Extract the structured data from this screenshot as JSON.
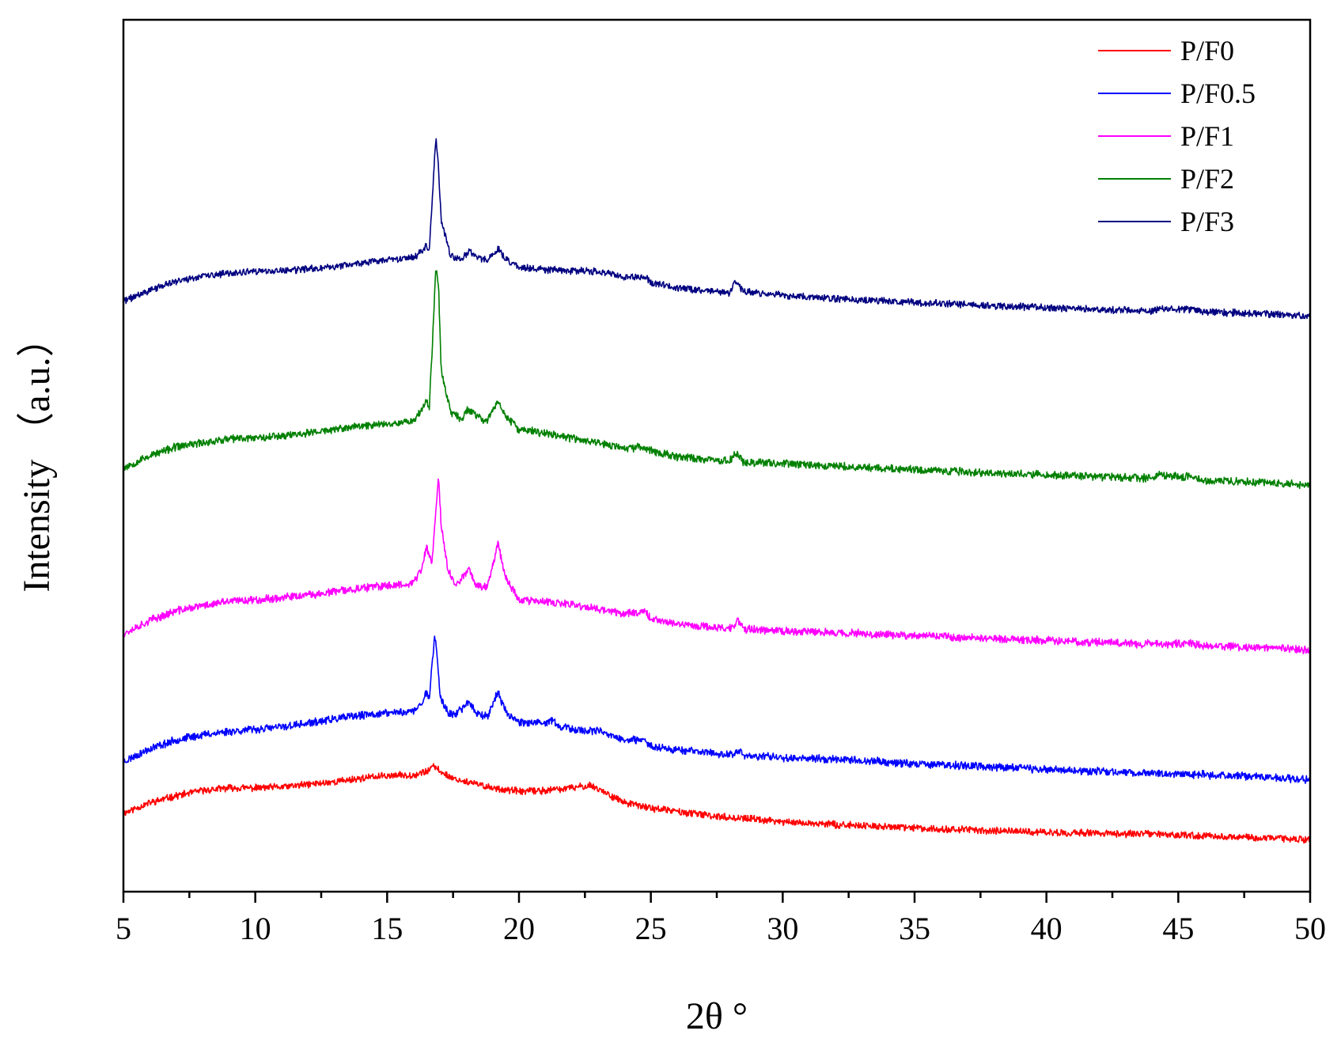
{
  "chart_data": {
    "type": "line",
    "title": "",
    "xlabel": "2θ °",
    "ylabel": "Intensity （a.u.）",
    "xlim": [
      5,
      50
    ],
    "ylim": [
      0,
      100
    ],
    "xticks": [
      5,
      10,
      15,
      20,
      25,
      30,
      35,
      40,
      45,
      50
    ],
    "xtick_labels": [
      "5",
      "10",
      "15",
      "20",
      "25",
      "30",
      "35",
      "40",
      "45",
      "50"
    ],
    "y_tick_labels_shown": false,
    "grid": false,
    "legend": {
      "position": "top-right"
    },
    "units_note": "Intensity in arbitrary units; curves vertically offset",
    "series": [
      {
        "name": "P/F0",
        "color": "#ff0000",
        "points": [
          [
            5,
            9.0
          ],
          [
            6,
            10.2
          ],
          [
            7,
            11.0
          ],
          [
            8,
            11.6
          ],
          [
            9,
            11.9
          ],
          [
            10,
            11.9
          ],
          [
            11,
            12.0
          ],
          [
            12,
            12.3
          ],
          [
            13,
            12.6
          ],
          [
            14,
            13.0
          ],
          [
            15,
            13.3
          ],
          [
            16,
            13.4
          ],
          [
            16.5,
            13.8
          ],
          [
            16.8,
            14.4
          ],
          [
            17,
            13.8
          ],
          [
            17.5,
            13.0
          ],
          [
            18,
            12.6
          ],
          [
            19,
            11.9
          ],
          [
            20,
            11.5
          ],
          [
            21,
            11.6
          ],
          [
            22,
            11.9
          ],
          [
            22.7,
            12.2
          ],
          [
            23,
            11.8
          ],
          [
            24,
            10.2
          ],
          [
            25,
            9.6
          ],
          [
            26,
            9.2
          ],
          [
            27,
            8.8
          ],
          [
            28,
            8.5
          ],
          [
            29,
            8.3
          ],
          [
            30,
            8.0
          ],
          [
            32,
            7.7
          ],
          [
            35,
            7.3
          ],
          [
            38,
            7.0
          ],
          [
            40,
            6.8
          ],
          [
            42,
            6.7
          ],
          [
            44,
            6.6
          ],
          [
            46,
            6.4
          ],
          [
            48,
            6.2
          ],
          [
            50,
            6.0
          ]
        ],
        "noise": 0.35,
        "seed": 11
      },
      {
        "name": "P/F0.5",
        "color": "#0000ff",
        "points": [
          [
            5,
            14.9
          ],
          [
            6,
            16.4
          ],
          [
            7,
            17.4
          ],
          [
            8,
            18.0
          ],
          [
            9,
            18.4
          ],
          [
            10,
            18.6
          ],
          [
            11,
            18.9
          ],
          [
            12,
            19.3
          ],
          [
            13,
            19.8
          ],
          [
            14,
            20.2
          ],
          [
            15,
            20.5
          ],
          [
            16,
            20.7
          ],
          [
            16.3,
            21.5
          ],
          [
            16.5,
            23.0
          ],
          [
            16.6,
            22.2
          ],
          [
            16.8,
            29.5
          ],
          [
            16.9,
            27.0
          ],
          [
            17.0,
            22.5
          ],
          [
            17.3,
            20.5
          ],
          [
            17.6,
            20.3
          ],
          [
            18.1,
            21.8
          ],
          [
            18.4,
            20.5
          ],
          [
            18.8,
            20.1
          ],
          [
            19.2,
            22.9
          ],
          [
            19.5,
            20.6
          ],
          [
            20,
            19.5
          ],
          [
            21,
            19.2
          ],
          [
            21.2,
            19.8
          ],
          [
            21.5,
            19.0
          ],
          [
            22,
            18.6
          ],
          [
            23,
            18.4
          ],
          [
            24,
            17.4
          ],
          [
            24.8,
            17.3
          ],
          [
            25,
            16.7
          ],
          [
            26,
            16.3
          ],
          [
            27,
            16.0
          ],
          [
            28,
            15.7
          ],
          [
            28.3,
            16.1
          ],
          [
            28.6,
            15.6
          ],
          [
            30,
            15.4
          ],
          [
            32,
            15.2
          ],
          [
            35,
            14.7
          ],
          [
            38,
            14.3
          ],
          [
            40,
            14.0
          ],
          [
            42,
            13.8
          ],
          [
            44,
            13.6
          ],
          [
            46,
            13.4
          ],
          [
            48,
            13.2
          ],
          [
            50,
            12.8
          ]
        ],
        "noise": 0.4,
        "seed": 23
      },
      {
        "name": "P/F1",
        "color": "#ff00ff",
        "points": [
          [
            5,
            29.6
          ],
          [
            6,
            31.1
          ],
          [
            7,
            32.2
          ],
          [
            8,
            32.8
          ],
          [
            9,
            33.3
          ],
          [
            10,
            33.5
          ],
          [
            11,
            33.7
          ],
          [
            12,
            34.0
          ],
          [
            13,
            34.4
          ],
          [
            14,
            34.8
          ],
          [
            15,
            35.1
          ],
          [
            16,
            35.4
          ],
          [
            16.3,
            37.0
          ],
          [
            16.5,
            39.5
          ],
          [
            16.7,
            37.6
          ],
          [
            16.85,
            44.0
          ],
          [
            16.95,
            47.5
          ],
          [
            17.05,
            42.0
          ],
          [
            17.3,
            37.0
          ],
          [
            17.6,
            35.0
          ],
          [
            18.1,
            37.1
          ],
          [
            18.4,
            35.0
          ],
          [
            18.8,
            35.0
          ],
          [
            19.2,
            40.0
          ],
          [
            19.5,
            36.0
          ],
          [
            20,
            33.5
          ],
          [
            21,
            33.2
          ],
          [
            22,
            32.9
          ],
          [
            23,
            32.4
          ],
          [
            24,
            31.9
          ],
          [
            24.8,
            32.2
          ],
          [
            25,
            31.3
          ],
          [
            26,
            30.7
          ],
          [
            27,
            30.4
          ],
          [
            28,
            30.2
          ],
          [
            28.3,
            31.0
          ],
          [
            28.6,
            30.1
          ],
          [
            30,
            29.9
          ],
          [
            32,
            29.7
          ],
          [
            35,
            29.4
          ],
          [
            38,
            29.0
          ],
          [
            40,
            28.8
          ],
          [
            42,
            28.6
          ],
          [
            44,
            28.4
          ],
          [
            45.5,
            28.5
          ],
          [
            46,
            28.2
          ],
          [
            48,
            28.0
          ],
          [
            50,
            27.7
          ]
        ],
        "noise": 0.4,
        "seed": 37
      },
      {
        "name": "P/F2",
        "color": "#008000",
        "points": [
          [
            5,
            48.6
          ],
          [
            6,
            50.0
          ],
          [
            7,
            51.0
          ],
          [
            8,
            51.5
          ],
          [
            9,
            51.9
          ],
          [
            10,
            52.1
          ],
          [
            11,
            52.3
          ],
          [
            12,
            52.6
          ],
          [
            13,
            53.0
          ],
          [
            14,
            53.4
          ],
          [
            15,
            53.7
          ],
          [
            16,
            54.0
          ],
          [
            16.3,
            55.3
          ],
          [
            16.5,
            56.2
          ],
          [
            16.6,
            55.5
          ],
          [
            16.85,
            71.5
          ],
          [
            16.95,
            69.5
          ],
          [
            17.05,
            60.0
          ],
          [
            17.4,
            55.0
          ],
          [
            17.8,
            54.2
          ],
          [
            18.1,
            55.4
          ],
          [
            18.4,
            54.4
          ],
          [
            18.8,
            54.0
          ],
          [
            19.2,
            56.3
          ],
          [
            19.5,
            54.5
          ],
          [
            20,
            53.0
          ],
          [
            21,
            52.6
          ],
          [
            22,
            52.0
          ],
          [
            23,
            51.5
          ],
          [
            24,
            50.8
          ],
          [
            24.8,
            51.0
          ],
          [
            25,
            50.6
          ],
          [
            26,
            49.9
          ],
          [
            27,
            49.6
          ],
          [
            28,
            49.4
          ],
          [
            28.2,
            50.4
          ],
          [
            28.5,
            49.3
          ],
          [
            30,
            49.1
          ],
          [
            32,
            48.8
          ],
          [
            35,
            48.4
          ],
          [
            38,
            48.0
          ],
          [
            40,
            47.8
          ],
          [
            42,
            47.6
          ],
          [
            44,
            47.4
          ],
          [
            44.3,
            47.8
          ],
          [
            45.5,
            47.6
          ],
          [
            46,
            47.2
          ],
          [
            48,
            47.0
          ],
          [
            50,
            46.6
          ]
        ],
        "noise": 0.4,
        "seed": 53
      },
      {
        "name": "P/F3",
        "color": "#000080",
        "points": [
          [
            5,
            67.7
          ],
          [
            6,
            69.0
          ],
          [
            7,
            70.0
          ],
          [
            8,
            70.6
          ],
          [
            9,
            70.9
          ],
          [
            10,
            71.1
          ],
          [
            11,
            71.2
          ],
          [
            12,
            71.4
          ],
          [
            13,
            71.7
          ],
          [
            14,
            72.1
          ],
          [
            15,
            72.4
          ],
          [
            16,
            72.7
          ],
          [
            16.3,
            73.5
          ],
          [
            16.5,
            74.2
          ],
          [
            16.6,
            73.6
          ],
          [
            16.85,
            86.7
          ],
          [
            16.95,
            83.0
          ],
          [
            17.05,
            77.0
          ],
          [
            17.4,
            73.0
          ],
          [
            17.8,
            72.5
          ],
          [
            18.1,
            73.5
          ],
          [
            18.4,
            72.8
          ],
          [
            18.8,
            72.4
          ],
          [
            19.2,
            73.8
          ],
          [
            19.5,
            72.6
          ],
          [
            20,
            71.6
          ],
          [
            21,
            71.3
          ],
          [
            22,
            71.2
          ],
          [
            23,
            71.1
          ],
          [
            24,
            70.5
          ],
          [
            24.8,
            70.5
          ],
          [
            25,
            69.8
          ],
          [
            26,
            69.3
          ],
          [
            27,
            68.9
          ],
          [
            28,
            68.7
          ],
          [
            28.2,
            70.2
          ],
          [
            28.5,
            68.8
          ],
          [
            30,
            68.4
          ],
          [
            32,
            68.0
          ],
          [
            35,
            67.6
          ],
          [
            38,
            67.2
          ],
          [
            40,
            67.0
          ],
          [
            42,
            66.8
          ],
          [
            44,
            66.6
          ],
          [
            44.3,
            66.9
          ],
          [
            45.5,
            66.8
          ],
          [
            46,
            66.5
          ],
          [
            48,
            66.3
          ],
          [
            50,
            66.0
          ]
        ],
        "noise": 0.35,
        "seed": 71
      }
    ]
  }
}
